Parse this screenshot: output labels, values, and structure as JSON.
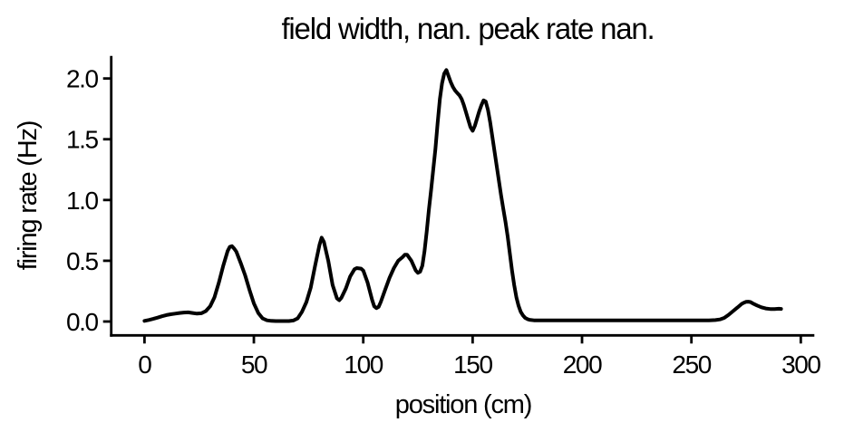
{
  "figure": {
    "background_color": "#ffffff",
    "text_color": "#000000"
  },
  "chart_data": {
    "type": "line",
    "title": "field width, nan. peak rate nan.",
    "xlabel": "position (cm)",
    "ylabel": "firing rate (Hz)",
    "grid": false,
    "legend": null,
    "spines": [
      "left",
      "bottom"
    ],
    "line_color": "#000000",
    "line_width": 4,
    "axis_color": "#000000",
    "xlim": [
      -15.2,
      306.2
    ],
    "ylim": [
      -0.114,
      2.186
    ],
    "x_ticks": [
      0,
      50,
      100,
      150,
      200,
      250,
      300
    ],
    "x_tick_labels": [
      "0",
      "50",
      "100",
      "150",
      "200",
      "250",
      "300"
    ],
    "y_ticks": [
      0.0,
      0.5,
      1.0,
      1.5,
      2.0
    ],
    "y_tick_labels": [
      "0.0",
      "0.5",
      "1.0",
      "1.5",
      "2.0"
    ],
    "series": [
      {
        "name": "firing rate",
        "points": [
          [
            0,
            0.005
          ],
          [
            2,
            0.013
          ],
          [
            4,
            0.022
          ],
          [
            6,
            0.032
          ],
          [
            8,
            0.043
          ],
          [
            10,
            0.053
          ],
          [
            12,
            0.06
          ],
          [
            14,
            0.065
          ],
          [
            16,
            0.07
          ],
          [
            18,
            0.074
          ],
          [
            20,
            0.075
          ],
          [
            22,
            0.07
          ],
          [
            24,
            0.065
          ],
          [
            26,
            0.068
          ],
          [
            28,
            0.085
          ],
          [
            30,
            0.125
          ],
          [
            32,
            0.2
          ],
          [
            34,
            0.32
          ],
          [
            36,
            0.46
          ],
          [
            38,
            0.58
          ],
          [
            39,
            0.615
          ],
          [
            40,
            0.62
          ],
          [
            41,
            0.6
          ],
          [
            42,
            0.575
          ],
          [
            44,
            0.48
          ],
          [
            46,
            0.38
          ],
          [
            48,
            0.26
          ],
          [
            50,
            0.15
          ],
          [
            52,
            0.07
          ],
          [
            54,
            0.025
          ],
          [
            56,
            0.01
          ],
          [
            58,
            0.005
          ],
          [
            60,
            0.004
          ],
          [
            63,
            0.004
          ],
          [
            66,
            0.004
          ],
          [
            68,
            0.008
          ],
          [
            70,
            0.025
          ],
          [
            72,
            0.08
          ],
          [
            74,
            0.16
          ],
          [
            76,
            0.28
          ],
          [
            78,
            0.46
          ],
          [
            80,
            0.63
          ],
          [
            81,
            0.69
          ],
          [
            82,
            0.655
          ],
          [
            84,
            0.5
          ],
          [
            86,
            0.3
          ],
          [
            88,
            0.19
          ],
          [
            89,
            0.175
          ],
          [
            90,
            0.195
          ],
          [
            92,
            0.27
          ],
          [
            94,
            0.37
          ],
          [
            96,
            0.43
          ],
          [
            97,
            0.44
          ],
          [
            99,
            0.435
          ],
          [
            100,
            0.42
          ],
          [
            102,
            0.32
          ],
          [
            104,
            0.18
          ],
          [
            105,
            0.125
          ],
          [
            106,
            0.11
          ],
          [
            107,
            0.12
          ],
          [
            108,
            0.16
          ],
          [
            110,
            0.26
          ],
          [
            112,
            0.36
          ],
          [
            114,
            0.44
          ],
          [
            116,
            0.5
          ],
          [
            118,
            0.53
          ],
          [
            119,
            0.55
          ],
          [
            120,
            0.55
          ],
          [
            122,
            0.5
          ],
          [
            124,
            0.42
          ],
          [
            125,
            0.4
          ],
          [
            126,
            0.41
          ],
          [
            127,
            0.46
          ],
          [
            128,
            0.58
          ],
          [
            129,
            0.74
          ],
          [
            130,
            0.92
          ],
          [
            131,
            1.08
          ],
          [
            132,
            1.25
          ],
          [
            133,
            1.42
          ],
          [
            134,
            1.63
          ],
          [
            135,
            1.83
          ],
          [
            136,
            1.96
          ],
          [
            137,
            2.04
          ],
          [
            138,
            2.07
          ],
          [
            139,
            2.02
          ],
          [
            140,
            1.97
          ],
          [
            141,
            1.93
          ],
          [
            142,
            1.9
          ],
          [
            143,
            1.88
          ],
          [
            144,
            1.86
          ],
          [
            145,
            1.83
          ],
          [
            146,
            1.78
          ],
          [
            147,
            1.72
          ],
          [
            148,
            1.66
          ],
          [
            149,
            1.6
          ],
          [
            150,
            1.57
          ],
          [
            151,
            1.61
          ],
          [
            152,
            1.67
          ],
          [
            153,
            1.73
          ],
          [
            154,
            1.78
          ],
          [
            155,
            1.82
          ],
          [
            156,
            1.81
          ],
          [
            157,
            1.74
          ],
          [
            158,
            1.64
          ],
          [
            159,
            1.52
          ],
          [
            160,
            1.4
          ],
          [
            161,
            1.28
          ],
          [
            162,
            1.16
          ],
          [
            163,
            1.04
          ],
          [
            164,
            0.93
          ],
          [
            165,
            0.82
          ],
          [
            166,
            0.7
          ],
          [
            167,
            0.56
          ],
          [
            168,
            0.42
          ],
          [
            169,
            0.3
          ],
          [
            170,
            0.2
          ],
          [
            171,
            0.13
          ],
          [
            172,
            0.08
          ],
          [
            173,
            0.05
          ],
          [
            174,
            0.03
          ],
          [
            175,
            0.02
          ],
          [
            176,
            0.014
          ],
          [
            178,
            0.01
          ],
          [
            182,
            0.009
          ],
          [
            188,
            0.009
          ],
          [
            194,
            0.009
          ],
          [
            200,
            0.009
          ],
          [
            206,
            0.009
          ],
          [
            212,
            0.009
          ],
          [
            218,
            0.009
          ],
          [
            224,
            0.009
          ],
          [
            230,
            0.009
          ],
          [
            236,
            0.009
          ],
          [
            242,
            0.009
          ],
          [
            248,
            0.009
          ],
          [
            254,
            0.01
          ],
          [
            258,
            0.01
          ],
          [
            261,
            0.012
          ],
          [
            263,
            0.017
          ],
          [
            265,
            0.03
          ],
          [
            267,
            0.055
          ],
          [
            269,
            0.085
          ],
          [
            271,
            0.115
          ],
          [
            273,
            0.145
          ],
          [
            274,
            0.155
          ],
          [
            275,
            0.162
          ],
          [
            276,
            0.163
          ],
          [
            277,
            0.16
          ],
          [
            278,
            0.15
          ],
          [
            280,
            0.132
          ],
          [
            282,
            0.117
          ],
          [
            284,
            0.107
          ],
          [
            286,
            0.103
          ],
          [
            288,
            0.103
          ],
          [
            290,
            0.105
          ],
          [
            291,
            0.104
          ]
        ]
      }
    ]
  }
}
